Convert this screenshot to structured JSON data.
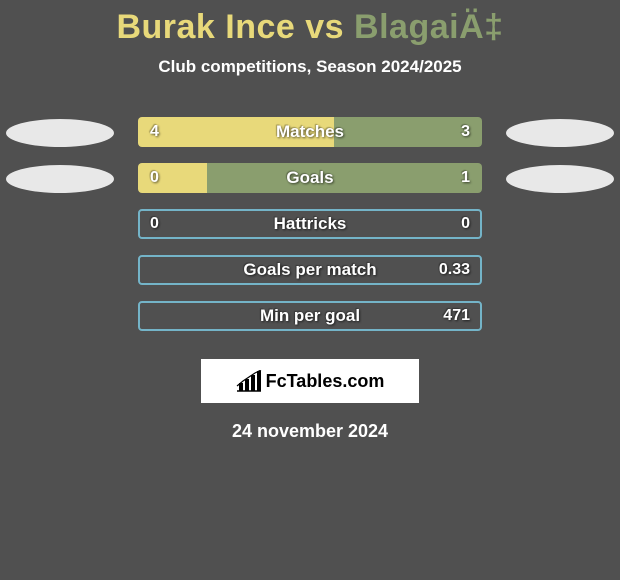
{
  "title": {
    "parts": [
      {
        "text": "Burak Ince ",
        "color": "#e8d97a"
      },
      {
        "text": "vs ",
        "color": "#e8d97a"
      },
      {
        "text": "BlagaiÄ‡",
        "color": "#8a9e6e"
      }
    ]
  },
  "subtitle": "Club competitions, Season 2024/2025",
  "player_left": {
    "color": "#e8d97a",
    "ellipse_color": "#e8e8e8"
  },
  "player_right": {
    "color": "#8a9e6e",
    "ellipse_color": "#e8e8e8"
  },
  "bar_border_color": "#74b4c8",
  "stats": [
    {
      "label": "Matches",
      "left_val": "4",
      "right_val": "3",
      "left_fill_pct": 57,
      "right_fill_pct": 43,
      "show_left_ellipse": true,
      "show_right_ellipse": true,
      "border": false
    },
    {
      "label": "Goals",
      "left_val": "0",
      "right_val": "1",
      "left_fill_pct": 20,
      "right_fill_pct": 80,
      "show_left_ellipse": true,
      "show_right_ellipse": true,
      "border": false
    },
    {
      "label": "Hattricks",
      "left_val": "0",
      "right_val": "0",
      "left_fill_pct": 0,
      "right_fill_pct": 0,
      "show_left_ellipse": false,
      "show_right_ellipse": false,
      "border": true
    },
    {
      "label": "Goals per match",
      "left_val": "",
      "right_val": "0.33",
      "left_fill_pct": 0,
      "right_fill_pct": 0,
      "show_left_ellipse": false,
      "show_right_ellipse": false,
      "border": true
    },
    {
      "label": "Min per goal",
      "left_val": "",
      "right_val": "471",
      "left_fill_pct": 0,
      "right_fill_pct": 0,
      "show_left_ellipse": false,
      "show_right_ellipse": false,
      "border": true
    }
  ],
  "brand": {
    "text": "FcTables.com"
  },
  "date": "24 november 2024",
  "background_color": "#505050"
}
